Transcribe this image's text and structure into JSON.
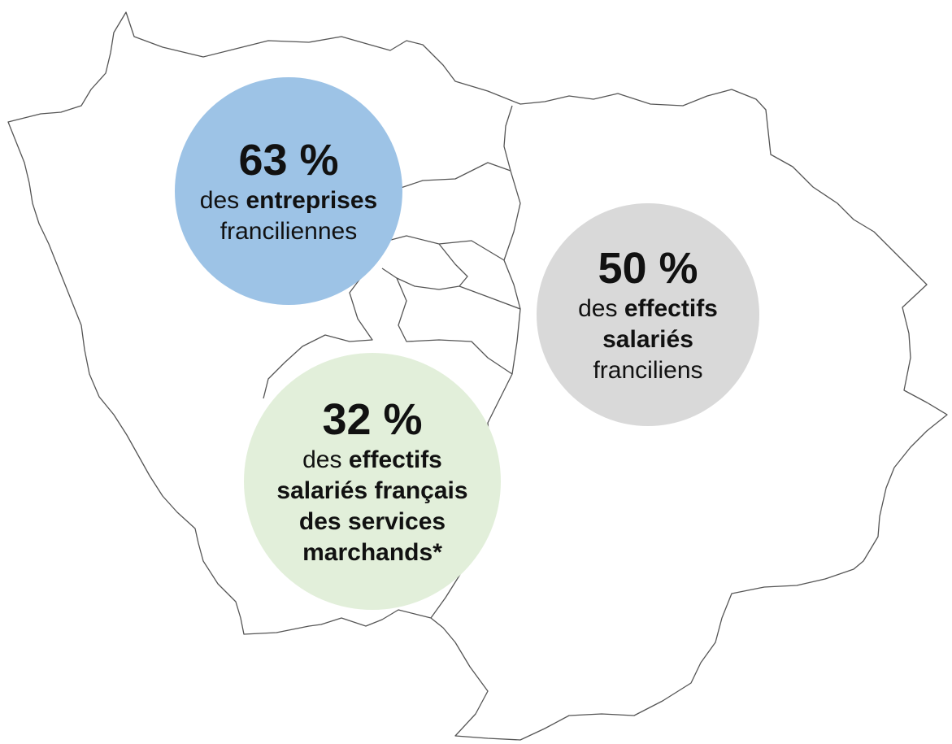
{
  "bubbles": [
    {
      "headline": "63 %",
      "color": "#9dc3e6",
      "lines": [
        [
          {
            "text": "des",
            "bold": false
          },
          {
            "text": "entreprises",
            "bold": true
          }
        ],
        [
          {
            "text": "franciliennes",
            "bold": false
          }
        ]
      ]
    },
    {
      "headline": "50 %",
      "color": "#d9d9d9",
      "lines": [
        [
          {
            "text": "des",
            "bold": false
          },
          {
            "text": "effectifs",
            "bold": true
          }
        ],
        [
          {
            "text": "salariés",
            "bold": true
          }
        ],
        [
          {
            "text": "franciliens",
            "bold": false
          }
        ]
      ]
    },
    {
      "headline": "32 %",
      "color": "#e2efda",
      "lines": [
        [
          {
            "text": "des",
            "bold": false
          },
          {
            "text": "effectifs",
            "bold": true
          }
        ],
        [
          {
            "text": "salariés français",
            "bold": true
          }
        ],
        [
          {
            "text": "des services",
            "bold": true
          }
        ],
        [
          {
            "text": "marchands*",
            "bold": true
          }
        ]
      ]
    }
  ]
}
